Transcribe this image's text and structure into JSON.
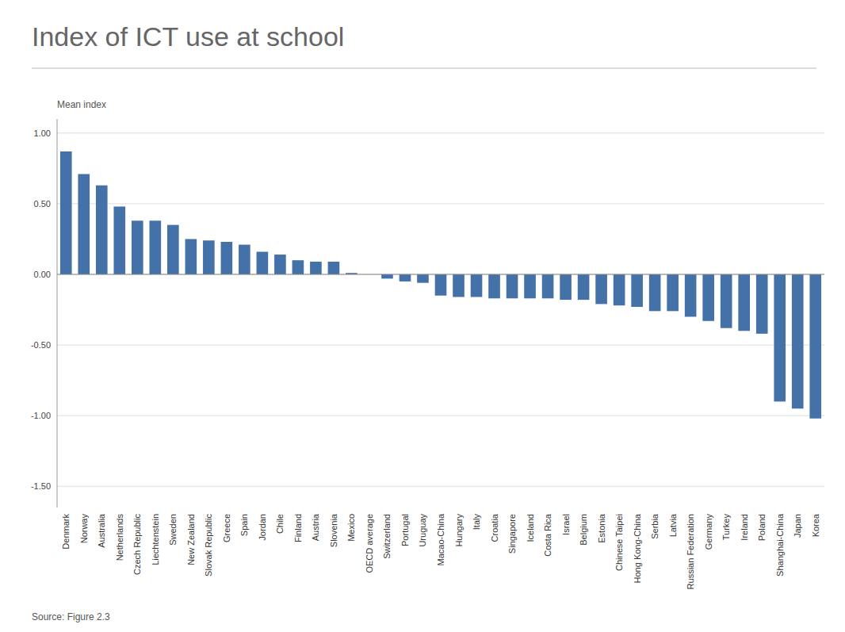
{
  "chart_data": {
    "type": "bar",
    "title": "Index of ICT use at school",
    "ylabel": "Mean index",
    "source": "Source: Figure 2.3",
    "categories": [
      "Denmark",
      "Norway",
      "Australia",
      "Netherlands",
      "Czech Republic",
      "Liechtenstein",
      "Sweden",
      "New Zealand",
      "Slovak Republic",
      "Greece",
      "Spain",
      "Jordan",
      "Chile",
      "Finland",
      "Austria",
      "Slovenia",
      "Mexico",
      "OECD average",
      "Switzerland",
      "Portugal",
      "Uruguay",
      "Macao-China",
      "Hungary",
      "Italy",
      "Croatia",
      "Singapore",
      "Iceland",
      "Costa Rica",
      "Israel",
      "Belgium",
      "Estonia",
      "Chinese Taipei",
      "Hong Kong-China",
      "Serbia",
      "Latvia",
      "Russian Federation",
      "Germany",
      "Turkey",
      "Ireland",
      "Poland",
      "Shanghai-China",
      "Japan",
      "Korea"
    ],
    "values": [
      0.87,
      0.71,
      0.63,
      0.48,
      0.38,
      0.38,
      0.35,
      0.25,
      0.24,
      0.23,
      0.21,
      0.16,
      0.14,
      0.1,
      0.09,
      0.09,
      0.01,
      0.0,
      -0.03,
      -0.05,
      -0.06,
      -0.15,
      -0.16,
      -0.16,
      -0.17,
      -0.17,
      -0.17,
      -0.17,
      -0.18,
      -0.18,
      -0.21,
      -0.22,
      -0.23,
      -0.26,
      -0.26,
      -0.3,
      -0.33,
      -0.38,
      -0.4,
      -0.42,
      -0.9,
      -0.95,
      -1.02
    ],
    "colors": [
      "#4472a8",
      "#4472a8",
      "#4472a8",
      "#4472a8",
      "#4472a8",
      "#4472a8",
      "#4472a8",
      "#4472a8",
      "#4472a8",
      "#4472a8",
      "#4472a8",
      "#4472a8",
      "#4472a8",
      "#4472a8",
      "#4472a8",
      "#4472a8",
      "#4472a8",
      "#cce8f4",
      "#4472a8",
      "#4472a8",
      "#4472a8",
      "#4472a8",
      "#4472a8",
      "#4472a8",
      "#4472a8",
      "#4472a8",
      "#4472a8",
      "#4472a8",
      "#4472a8",
      "#4472a8",
      "#4472a8",
      "#4472a8",
      "#4472a8",
      "#4472a8",
      "#4472a8",
      "#4472a8",
      "#4472a8",
      "#4472a8",
      "#4472a8",
      "#4472a8",
      "#4472a8",
      "#4472a8",
      "#4472a8"
    ],
    "ylim": [
      -1.65,
      1.1
    ],
    "yticks": [
      {
        "value": -1.5,
        "label": "-1.50"
      },
      {
        "value": -1.0,
        "label": "-1.00"
      },
      {
        "value": -0.5,
        "label": "-0.50"
      },
      {
        "value": 0.0,
        "label": "0.00"
      },
      {
        "value": 0.5,
        "label": "0.50"
      },
      {
        "value": 1.0,
        "label": "1.00"
      }
    ],
    "grid": true
  }
}
